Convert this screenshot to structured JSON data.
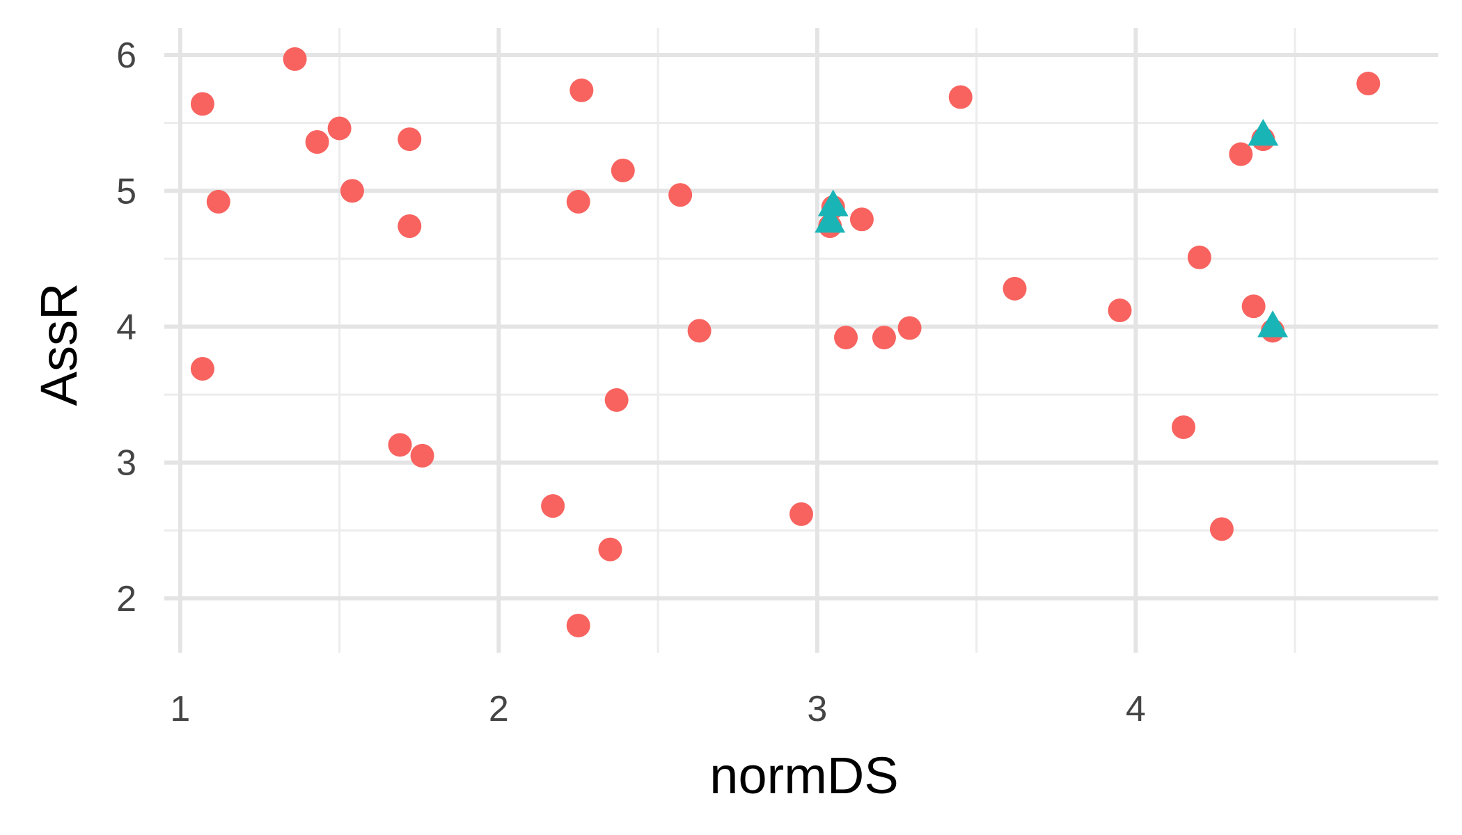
{
  "chart_data": {
    "type": "scatter",
    "xlabel": "normDS",
    "ylabel": "AssR",
    "xlim": [
      0.95,
      4.95
    ],
    "ylim": [
      1.6,
      6.2
    ],
    "x_ticks": [
      1,
      2,
      3,
      4
    ],
    "x_tick_labels": [
      "1",
      "2",
      "3",
      "4"
    ],
    "y_ticks": [
      2,
      3,
      4,
      5,
      6
    ],
    "y_tick_labels": [
      "2",
      "3",
      "4",
      "5",
      "6"
    ],
    "grid": true,
    "legend": "none",
    "series": [
      {
        "marker": "circle",
        "color": "#f8635f",
        "points": [
          [
            1.07,
            5.64
          ],
          [
            1.36,
            5.97
          ],
          [
            1.43,
            5.36
          ],
          [
            1.5,
            5.46
          ],
          [
            1.72,
            5.38
          ],
          [
            1.12,
            4.92
          ],
          [
            1.54,
            5.0
          ],
          [
            1.72,
            4.74
          ],
          [
            1.07,
            3.69
          ],
          [
            1.69,
            3.13
          ],
          [
            1.76,
            3.05
          ],
          [
            2.26,
            5.74
          ],
          [
            2.39,
            5.15
          ],
          [
            2.25,
            4.92
          ],
          [
            2.57,
            4.97
          ],
          [
            2.63,
            3.97
          ],
          [
            2.37,
            3.46
          ],
          [
            2.17,
            2.68
          ],
          [
            2.35,
            2.36
          ],
          [
            2.25,
            1.8
          ],
          [
            2.95,
            2.62
          ],
          [
            3.05,
            4.88
          ],
          [
            3.04,
            4.74
          ],
          [
            3.14,
            4.79
          ],
          [
            3.09,
            3.92
          ],
          [
            3.21,
            3.92
          ],
          [
            3.29,
            3.99
          ],
          [
            3.45,
            5.69
          ],
          [
            3.62,
            4.28
          ],
          [
            3.95,
            4.12
          ],
          [
            4.2,
            4.51
          ],
          [
            4.15,
            3.26
          ],
          [
            4.27,
            2.51
          ],
          [
            4.33,
            5.27
          ],
          [
            4.4,
            5.38
          ],
          [
            4.37,
            4.15
          ],
          [
            4.43,
            3.97
          ],
          [
            4.73,
            5.79
          ]
        ]
      },
      {
        "marker": "triangle",
        "color": "#19b4b6",
        "points": [
          [
            3.05,
            4.88
          ],
          [
            3.04,
            4.76
          ],
          [
            4.4,
            5.4
          ],
          [
            4.43,
            3.99
          ]
        ]
      }
    ]
  }
}
